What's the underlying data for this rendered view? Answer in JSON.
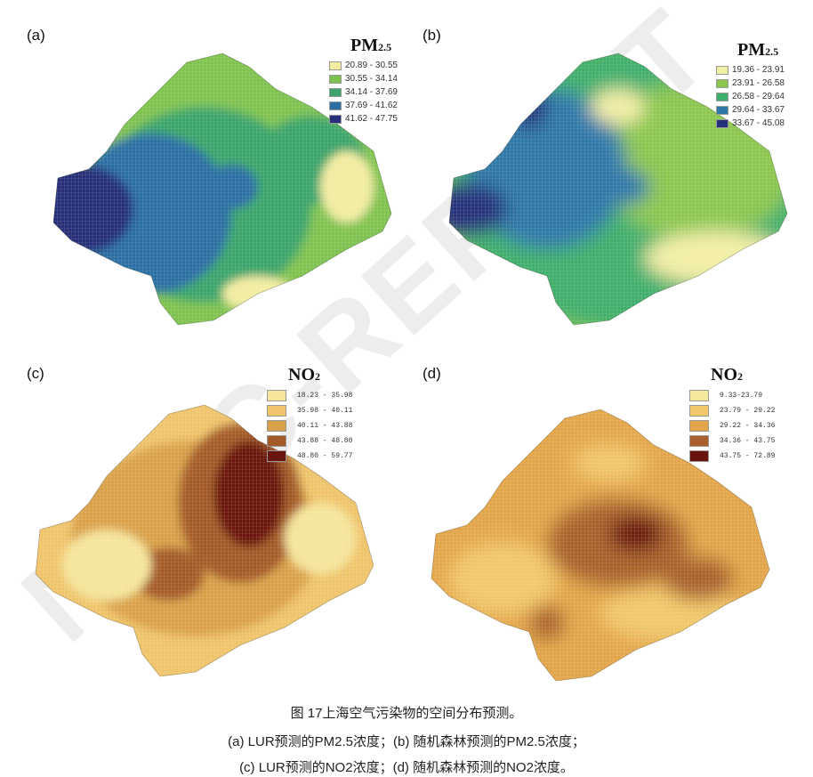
{
  "watermark": "NSFC-REPORT",
  "panels": [
    {
      "label": "(a)",
      "legend_title": "PM",
      "legend_sub": "2.5",
      "classes": [
        "20.89 - 30.55",
        "30.55 - 34.14",
        "34.14 - 37.69",
        "37.69 - 41.62",
        "41.62 - 47.75"
      ],
      "colors": [
        "#f2eca0",
        "#7fc24f",
        "#3aa46a",
        "#2a6ea3",
        "#262f78"
      ]
    },
    {
      "label": "(b)",
      "legend_title": "PM",
      "legend_sub": "2.5",
      "classes": [
        "19.36 - 23.91",
        "23.91 - 26.58",
        "26.58 - 29.64",
        "29.64 - 33.67",
        "33.67 - 45.08"
      ],
      "colors": [
        "#f3eea6",
        "#8cc64f",
        "#3fae6c",
        "#2d78a8",
        "#25307a"
      ]
    },
    {
      "label": "(c)",
      "legend_title": "NO",
      "legend_sub": "2",
      "classes": [
        "18.23 - 35.98",
        "35.98 - 40.11",
        "40.11 - 43.88",
        "43.88 - 48.80",
        "48.80 - 59.77"
      ],
      "colors": [
        "#f5e59a",
        "#efc46b",
        "#d9a04a",
        "#a45a26",
        "#6a1410"
      ]
    },
    {
      "label": "(d)",
      "legend_title": "NO",
      "legend_sub": "2",
      "classes": [
        "9.33-23.79",
        "23.79 - 29.22",
        "29.22 - 34.36",
        "34.36 - 43.75",
        "43.75 - 72.89"
      ],
      "colors": [
        "#f5ea9c",
        "#f1c86a",
        "#e3a54a",
        "#a9602c",
        "#6a1410"
      ]
    }
  ],
  "caption": {
    "line1": "图 17上海空气污染物的空间分布预测。",
    "line2": "(a) LUR预测的PM2.5浓度；(b) 随机森林预测的PM2.5浓度；",
    "line3": "(c) LUR预测的NO2浓度；(d) 随机森林预测的NO2浓度。"
  }
}
